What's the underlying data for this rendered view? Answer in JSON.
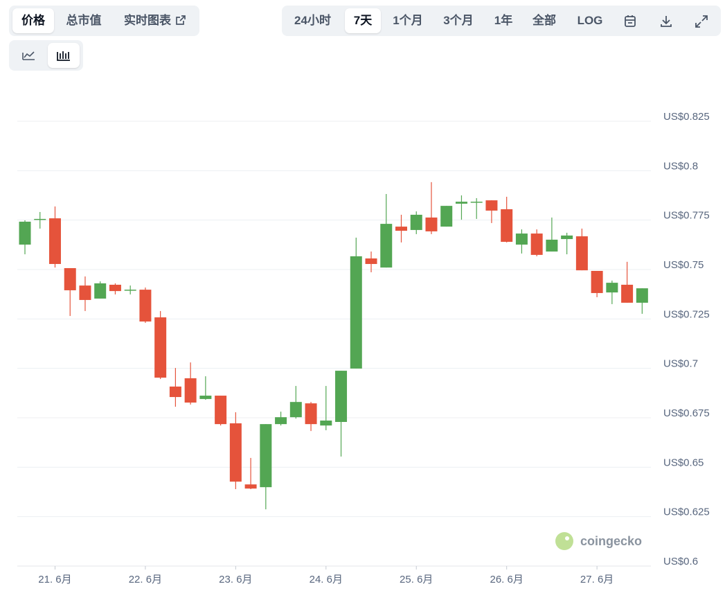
{
  "toolbar": {
    "tabs": [
      "价格",
      "总市值",
      "实时图表"
    ],
    "ranges": [
      "24小时",
      "7天",
      "1个月",
      "3个月",
      "1年",
      "全部",
      "LOG"
    ],
    "active_tab": 0,
    "active_range": 1,
    "active_view": 1
  },
  "watermark": "coingecko",
  "chart_data": {
    "type": "candlestick",
    "categories": [
      null,
      null,
      "21. 6月",
      null,
      null,
      null,
      null,
      null,
      "22. 6月",
      null,
      null,
      null,
      null,
      null,
      "23. 6月",
      null,
      null,
      null,
      null,
      null,
      "24. 6月",
      null,
      null,
      null,
      null,
      null,
      "25. 6月",
      null,
      null,
      null,
      null,
      null,
      "26. 6月",
      null,
      null,
      null,
      null,
      null,
      "27. 6月",
      null,
      null,
      null
    ],
    "open": [
      0.7626,
      0.7752,
      0.7759,
      0.7507,
      0.7419,
      0.7353,
      0.7423,
      0.7395,
      0.7398,
      0.7258,
      0.6908,
      0.695,
      0.6845,
      0.6862,
      0.6722,
      0.6413,
      0.6399,
      0.6718,
      0.6753,
      0.6823,
      0.6711,
      0.6729,
      0.6999,
      0.7556,
      0.751,
      0.7717,
      0.77,
      0.7763,
      0.7717,
      0.7833,
      0.784,
      0.785,
      0.7805,
      0.7626,
      0.7682,
      0.7591,
      0.7654,
      0.7668,
      0.7493,
      0.7384,
      0.7423,
      0.7332
    ],
    "high": [
      0.7749,
      0.7791,
      0.7819,
      0.7507,
      0.7465,
      0.744,
      0.743,
      0.7419,
      0.7409,
      0.729,
      0.7002,
      0.703,
      0.696,
      0.6862,
      0.6778,
      0.6547,
      0.6718,
      0.6781,
      0.6911,
      0.683,
      0.6911,
      0.6988,
      0.7661,
      0.7591,
      0.7882,
      0.7777,
      0.7794,
      0.7942,
      0.7822,
      0.7875,
      0.7861,
      0.785,
      0.7868,
      0.7703,
      0.7703,
      0.7763,
      0.7686,
      0.7707,
      0.7493,
      0.7444,
      0.7539,
      0.7405
    ],
    "low": [
      0.7577,
      0.7707,
      0.751,
      0.7265,
      0.729,
      0.7353,
      0.7374,
      0.7374,
      0.723,
      0.6946,
      0.6806,
      0.6817,
      0.6841,
      0.6711,
      0.6389,
      0.6389,
      0.6287,
      0.6711,
      0.6746,
      0.6683,
      0.6687,
      0.6554,
      0.6999,
      0.7486,
      0.751,
      0.7637,
      0.7679,
      0.7679,
      0.7717,
      0.7752,
      0.7756,
      0.7735,
      0.7637,
      0.7581,
      0.7567,
      0.7591,
      0.7577,
      0.7496,
      0.736,
      0.7325,
      0.7332,
      0.7276
    ],
    "close": [
      0.7742,
      0.7756,
      0.7528,
      0.7395,
      0.7346,
      0.743,
      0.7391,
      0.7398,
      0.7237,
      0.6953,
      0.6855,
      0.6827,
      0.6862,
      0.6718,
      0.6427,
      0.6392,
      0.6718,
      0.6753,
      0.683,
      0.6718,
      0.6736,
      0.6988,
      0.7567,
      0.7528,
      0.7731,
      0.7696,
      0.7777,
      0.7693,
      0.7822,
      0.7843,
      0.7843,
      0.7798,
      0.764,
      0.7682,
      0.7574,
      0.7651,
      0.7672,
      0.7496,
      0.7381,
      0.7433,
      0.7332,
      0.7405
    ],
    "up_color": "#53a653",
    "down_color": "#e5533b",
    "ylim": [
      0.6,
      0.825
    ],
    "yticks": [
      {
        "value": 0.6,
        "label": "US$0.6"
      },
      {
        "value": 0.625,
        "label": "US$0.625"
      },
      {
        "value": 0.65,
        "label": "US$0.65"
      },
      {
        "value": 0.675,
        "label": "US$0.675"
      },
      {
        "value": 0.7,
        "label": "US$0.7"
      },
      {
        "value": 0.725,
        "label": "US$0.725"
      },
      {
        "value": 0.75,
        "label": "US$0.75"
      },
      {
        "value": 0.775,
        "label": "US$0.775"
      },
      {
        "value": 0.8,
        "label": "US$0.8"
      },
      {
        "value": 0.825,
        "label": "US$0.825"
      }
    ],
    "grid": true
  }
}
